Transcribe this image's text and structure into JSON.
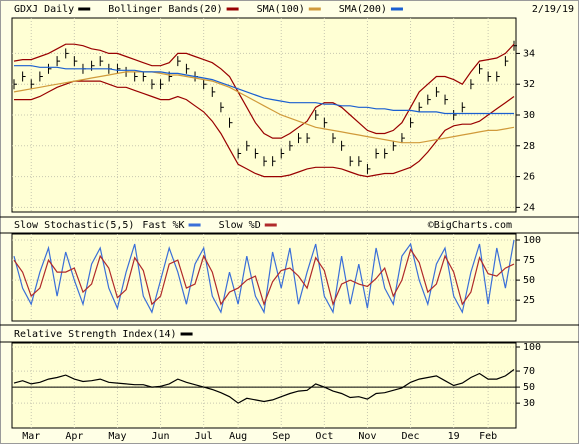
{
  "chart_data": [
    {
      "type": "stock",
      "date": "2/19/19",
      "ylim": [
        23.7,
        36.3
      ],
      "yticks": [
        24,
        26,
        28,
        30,
        32,
        34
      ],
      "grid": true,
      "series": [
        {
          "name": "GDXJ Daily",
          "color": "#000000",
          "style": "bars",
          "values": [
            32,
            32.5,
            32,
            32.5,
            33,
            33.5,
            34,
            33.5,
            33,
            33.2,
            33.5,
            33,
            33,
            32.8,
            32.5,
            32.5,
            32,
            32,
            32.5,
            33.5,
            33,
            32.5,
            32,
            31.5,
            30.5,
            29.5,
            27.5,
            28,
            27.5,
            27,
            27,
            27.5,
            28,
            28.5,
            28.5,
            30,
            29.5,
            28.5,
            28,
            27,
            27,
            26.5,
            27.5,
            27.5,
            28,
            28.5,
            29.5,
            30.5,
            31,
            31.5,
            31,
            30,
            30.5,
            32,
            33,
            32.5,
            32.5,
            33.5,
            34.5
          ]
        },
        {
          "name": "Bollinger Bands(20)",
          "color": "#990000",
          "values": [
            33.5,
            33.6,
            33.6,
            33.8,
            34,
            34.3,
            34.6,
            34.6,
            34.5,
            34.3,
            34.2,
            34,
            34,
            33.8,
            33.6,
            33.4,
            33.2,
            33.2,
            33.4,
            34,
            34,
            33.8,
            33.6,
            33.4,
            33,
            32.5,
            31.5,
            30.5,
            29.5,
            28.8,
            28.5,
            28.5,
            28.8,
            29.2,
            29.6,
            30.5,
            30.8,
            30.8,
            30.5,
            30,
            29.5,
            29,
            28.8,
            28.8,
            29,
            29.5,
            30.5,
            31.5,
            32,
            32.5,
            32.5,
            32.3,
            32,
            32.8,
            33.5,
            33.6,
            33.7,
            34,
            34.6
          ],
          "lower": [
            31,
            31,
            31,
            31.2,
            31.5,
            31.8,
            32,
            32.2,
            32.2,
            32.2,
            32.2,
            32,
            31.8,
            31.8,
            31.6,
            31.4,
            31.2,
            31,
            31,
            31.2,
            31,
            30.6,
            30.2,
            29.6,
            28.8,
            27.8,
            26.8,
            26.5,
            26.2,
            26,
            26,
            26,
            26.1,
            26.3,
            26.5,
            26.6,
            26.6,
            26.6,
            26.5,
            26.3,
            26.1,
            26,
            26.1,
            26.2,
            26.2,
            26.4,
            26.6,
            27,
            27.6,
            28.3,
            29,
            29.3,
            29.4,
            29.4,
            29.6,
            30,
            30.4,
            30.8,
            31.2
          ]
        },
        {
          "name": "SMA(100)",
          "color": "#d09a3a",
          "values": [
            31.5,
            31.6,
            31.7,
            31.8,
            31.9,
            32,
            32.1,
            32.2,
            32.3,
            32.4,
            32.5,
            32.6,
            32.7,
            32.8,
            32.8,
            32.8,
            32.8,
            32.7,
            32.6,
            32.6,
            32.5,
            32.4,
            32.3,
            32.2,
            32,
            31.8,
            31.5,
            31.2,
            30.9,
            30.6,
            30.3,
            30,
            29.8,
            29.6,
            29.4,
            29.2,
            29.1,
            29,
            28.9,
            28.8,
            28.7,
            28.6,
            28.5,
            28.4,
            28.3,
            28.2,
            28.2,
            28.2,
            28.3,
            28.4,
            28.5,
            28.6,
            28.7,
            28.8,
            28.9,
            29,
            29,
            29.1,
            29.2
          ]
        },
        {
          "name": "SMA(200)",
          "color": "#1a5fd0",
          "values": [
            33.2,
            33.2,
            33.2,
            33.1,
            33.1,
            33.1,
            33,
            33,
            33,
            33,
            33,
            33,
            32.9,
            32.9,
            32.9,
            32.8,
            32.8,
            32.8,
            32.7,
            32.7,
            32.6,
            32.5,
            32.4,
            32.3,
            32.1,
            31.9,
            31.7,
            31.5,
            31.3,
            31.1,
            31,
            30.9,
            30.8,
            30.8,
            30.8,
            30.8,
            30.7,
            30.7,
            30.6,
            30.6,
            30.5,
            30.5,
            30.4,
            30.4,
            30.3,
            30.3,
            30.3,
            30.2,
            30.2,
            30.2,
            30.1,
            30.1,
            30.1,
            30.1,
            30.1,
            30.1,
            30.1,
            30.1,
            30.1
          ]
        }
      ]
    },
    {
      "type": "line",
      "title": "Slow Stochastic(5,5)",
      "watermark": "©BigCharts.com",
      "ylim": [
        -1,
        107.5
      ],
      "yticks": [
        25,
        50,
        75,
        100
      ],
      "grid": true,
      "series": [
        {
          "name": "Fast %K",
          "color": "#3a6fd8",
          "values": [
            80,
            40,
            20,
            60,
            90,
            30,
            85,
            50,
            20,
            70,
            90,
            40,
            15,
            60,
            95,
            30,
            10,
            50,
            90,
            60,
            20,
            70,
            90,
            30,
            10,
            60,
            20,
            80,
            30,
            10,
            85,
            40,
            90,
            20,
            60,
            95,
            30,
            10,
            80,
            20,
            70,
            15,
            90,
            40,
            20,
            80,
            95,
            50,
            20,
            70,
            90,
            30,
            10,
            60,
            95,
            20,
            90,
            40,
            100
          ]
        },
        {
          "name": "Slow %D",
          "color": "#b02a2a",
          "values": [
            75,
            60,
            30,
            40,
            75,
            60,
            60,
            65,
            35,
            45,
            80,
            65,
            28,
            38,
            78,
            62,
            20,
            30,
            70,
            75,
            40,
            45,
            80,
            60,
            20,
            35,
            40,
            50,
            55,
            20,
            48,
            62,
            65,
            55,
            40,
            78,
            62,
            20,
            45,
            50,
            45,
            42,
            52,
            65,
            30,
            50,
            88,
            72,
            35,
            45,
            80,
            60,
            20,
            35,
            78,
            58,
            55,
            65,
            70
          ]
        }
      ]
    },
    {
      "type": "line",
      "ylim": [
        -1,
        105
      ],
      "yticks": [
        30,
        50,
        70,
        100
      ],
      "grid": true,
      "reference": 50,
      "categories": [
        null,
        null,
        "Mar",
        null,
        null,
        null,
        null,
        "Apr",
        null,
        null,
        null,
        null,
        "May",
        null,
        null,
        null,
        null,
        "Jun",
        null,
        null,
        null,
        null,
        "Jul",
        null,
        null,
        null,
        "Aug",
        null,
        null,
        null,
        null,
        "Sep",
        null,
        null,
        null,
        null,
        "Oct",
        null,
        null,
        null,
        null,
        "Nov",
        null,
        null,
        null,
        null,
        "Dec",
        null,
        null,
        null,
        null,
        "19",
        null,
        null,
        null,
        "Feb",
        null,
        null,
        null
      ],
      "series": [
        {
          "name": "Relative Strength Index(14)",
          "color": "#000000",
          "values": [
            55,
            58,
            54,
            56,
            60,
            62,
            65,
            60,
            57,
            58,
            60,
            56,
            55,
            54,
            53,
            53,
            50,
            51,
            54,
            60,
            56,
            53,
            50,
            47,
            43,
            38,
            30,
            36,
            34,
            32,
            34,
            38,
            42,
            45,
            46,
            54,
            50,
            45,
            42,
            37,
            38,
            35,
            42,
            43,
            46,
            49,
            56,
            60,
            62,
            64,
            58,
            52,
            55,
            62,
            67,
            60,
            60,
            64,
            72
          ]
        }
      ]
    }
  ]
}
